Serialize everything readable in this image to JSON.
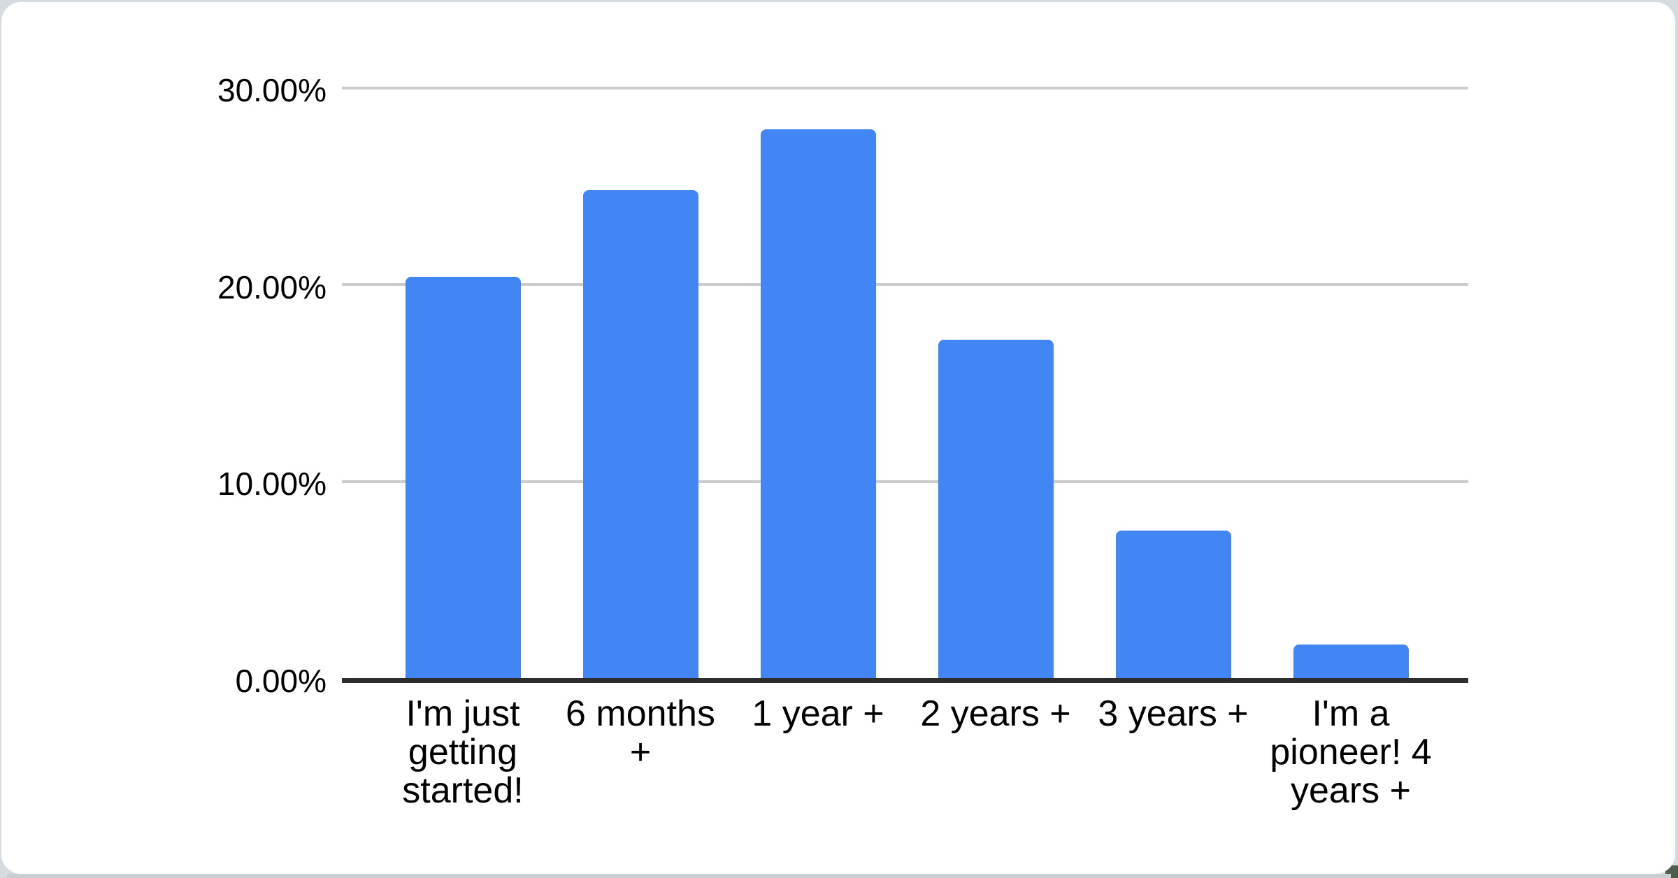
{
  "page": {
    "background_color": "#d6dbdf",
    "card_color": "#ffffff",
    "corner_accent_color": "#4b5e4b",
    "bottom_edge_color": "#c9cdd4"
  },
  "chart_data": {
    "type": "bar",
    "title": "",
    "subtitle": "",
    "xlabel": "",
    "ylabel": "",
    "categories": [
      "I'm just getting started!",
      "6 months +",
      "1 year +",
      "2 years +",
      "3 years +",
      "I'm a pioneer! 4 years +"
    ],
    "values": [
      20.4,
      24.8,
      27.9,
      17.2,
      7.5,
      1.7
    ],
    "value_unit": "percent",
    "y_ticks": [
      {
        "value": 0,
        "label": "0.00%"
      },
      {
        "value": 10,
        "label": "10.00%"
      },
      {
        "value": 20,
        "label": "20.00%"
      },
      {
        "value": 30,
        "label": "30.00%"
      }
    ],
    "ylim": [
      0,
      30
    ],
    "grid": true,
    "legend": "none",
    "colors": {
      "bar": "#4285f4",
      "gridline": "#cccccc",
      "axis_line": "#2d2d2d",
      "label_text": "#000000"
    }
  }
}
